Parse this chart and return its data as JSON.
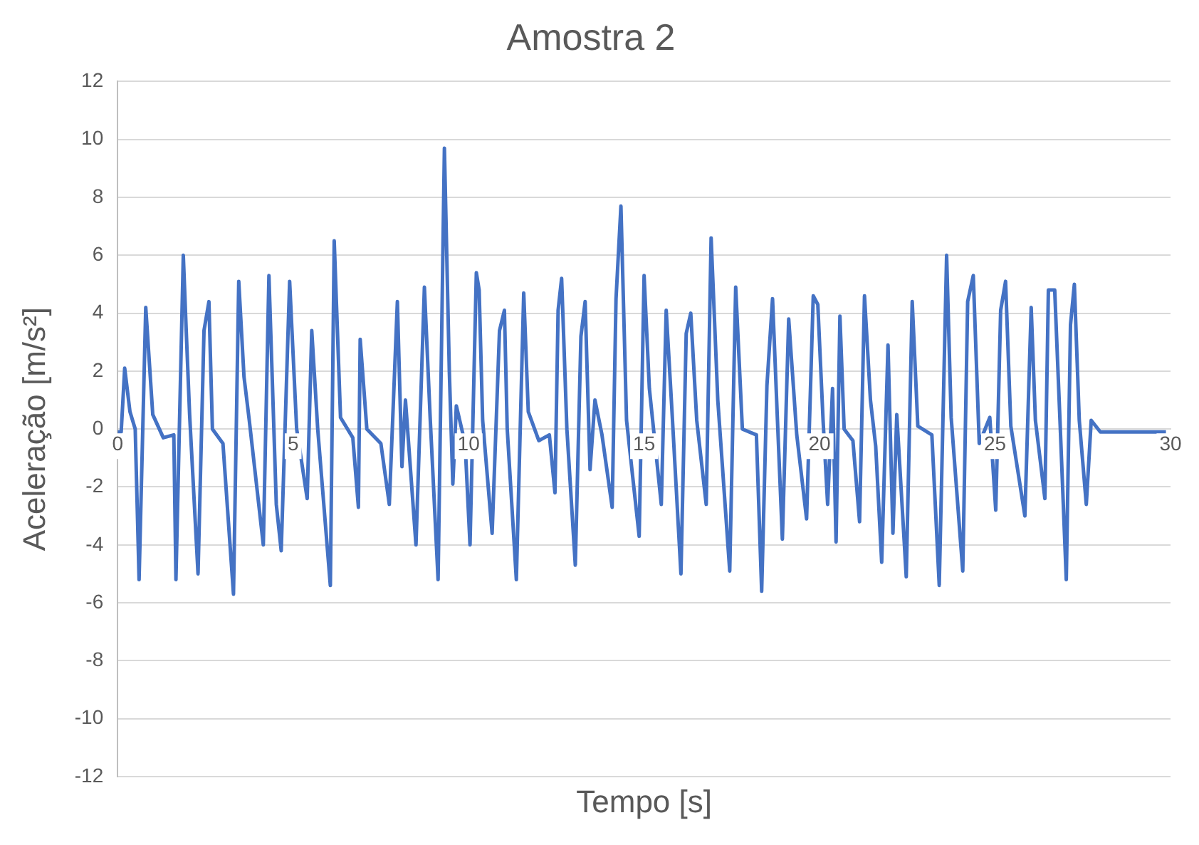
{
  "chart_data": {
    "type": "line",
    "title": "Amostra 2",
    "xlabel": "Tempo [s]",
    "ylabel": "Aceleração [m/s²]",
    "xlim": [
      0,
      30
    ],
    "xticks": [
      0,
      5,
      10,
      15,
      20,
      25,
      30
    ],
    "ylim": [
      -12,
      12
    ],
    "yticks": [
      -12,
      -10,
      -8,
      -6,
      -4,
      -2,
      0,
      2,
      4,
      6,
      8,
      10,
      12
    ],
    "grid": "y",
    "legend": false,
    "marker": "none",
    "line_style": "solid",
    "series": [
      {
        "color": "#4472c4",
        "x": [
          0,
          0.1,
          0.2,
          0.35,
          0.5,
          0.61,
          0.8,
          1.0,
          1.3,
          1.6,
          1.66,
          1.87,
          1.95,
          2.05,
          2.29,
          2.46,
          2.6,
          2.7,
          3.0,
          3.3,
          3.45,
          3.6,
          3.75,
          4.15,
          4.31,
          4.52,
          4.66,
          4.9,
          5.1,
          5.4,
          5.53,
          5.7,
          6.06,
          6.17,
          6.35,
          6.7,
          6.86,
          6.91,
          7.1,
          7.5,
          7.74,
          7.97,
          8.1,
          8.2,
          8.5,
          8.74,
          8.9,
          9.13,
          9.31,
          9.45,
          9.55,
          9.65,
          9.9,
          10.04,
          10.22,
          10.3,
          10.4,
          10.67,
          10.88,
          11.02,
          11.1,
          11.36,
          11.57,
          11.7,
          12.0,
          12.3,
          12.46,
          12.55,
          12.65,
          12.8,
          13.04,
          13.2,
          13.32,
          13.46,
          13.6,
          13.8,
          14.09,
          14.2,
          14.34,
          14.5,
          14.86,
          15.0,
          15.15,
          15.49,
          15.63,
          15.8,
          16.05,
          16.2,
          16.33,
          16.5,
          16.77,
          16.91,
          17.1,
          17.44,
          17.61,
          17.8,
          18.2,
          18.35,
          18.5,
          18.66,
          18.8,
          18.94,
          19.12,
          19.35,
          19.63,
          19.82,
          19.95,
          20.1,
          20.23,
          20.37,
          20.47,
          20.58,
          20.7,
          20.95,
          21.14,
          21.28,
          21.45,
          21.6,
          21.77,
          21.95,
          22.09,
          22.2,
          22.47,
          22.64,
          22.8,
          23.2,
          23.41,
          23.62,
          23.75,
          24.08,
          24.22,
          24.38,
          24.55,
          24.85,
          25.02,
          25.16,
          25.3,
          25.45,
          25.85,
          26.03,
          26.15,
          26.42,
          26.52,
          26.7,
          26.85,
          27.03,
          27.15,
          27.26,
          27.4,
          27.6,
          27.74,
          28.0,
          28.5,
          29.0,
          29.5,
          29.87
        ],
        "values": [
          -0.1,
          -0.1,
          2.1,
          0.6,
          0,
          -5.2,
          4.2,
          0.5,
          -0.3,
          -0.2,
          -5.2,
          6.0,
          3.5,
          0.5,
          -5.0,
          3.4,
          4.4,
          0,
          -0.5,
          -5.7,
          5.1,
          1.8,
          0.3,
          -4.0,
          5.3,
          -2.6,
          -4.2,
          5.1,
          0,
          -2.4,
          3.4,
          0,
          -5.4,
          6.5,
          0.4,
          -0.3,
          -2.7,
          3.1,
          0,
          -0.5,
          -2.6,
          4.4,
          -1.3,
          1.0,
          -4.0,
          4.9,
          0.5,
          -5.2,
          9.7,
          2.0,
          -1.9,
          0.8,
          -0.5,
          -4.0,
          5.4,
          4.8,
          0.3,
          -3.6,
          3.4,
          4.1,
          0,
          -5.2,
          4.7,
          0.6,
          -0.4,
          -0.2,
          -2.2,
          4.1,
          5.2,
          0,
          -4.7,
          3.2,
          4.4,
          -1.4,
          1.0,
          -0.2,
          -2.7,
          4.5,
          7.7,
          0.3,
          -3.7,
          5.3,
          1.4,
          -2.6,
          4.1,
          0.5,
          -5.0,
          3.3,
          4.0,
          0.3,
          -2.6,
          6.6,
          1.0,
          -4.9,
          4.9,
          0,
          -0.2,
          -5.6,
          1.5,
          4.5,
          0.3,
          -3.8,
          3.8,
          -0.2,
          -3.1,
          4.6,
          4.3,
          0.3,
          -2.6,
          1.4,
          -3.9,
          3.9,
          0,
          -0.4,
          -3.2,
          4.6,
          1.0,
          -0.6,
          -4.6,
          2.9,
          -3.6,
          0.5,
          -5.1,
          4.4,
          0.1,
          -0.2,
          -5.4,
          6.0,
          0.4,
          -4.9,
          4.4,
          5.3,
          -0.5,
          0.4,
          -2.8,
          4.1,
          5.1,
          0.1,
          -3.0,
          4.2,
          0.3,
          -2.4,
          4.8,
          4.8,
          0.3,
          -5.2,
          3.6,
          5.0,
          0.3,
          -2.6,
          0.3,
          -0.1,
          -0.1,
          -0.1,
          -0.1,
          -0.1
        ]
      }
    ]
  }
}
